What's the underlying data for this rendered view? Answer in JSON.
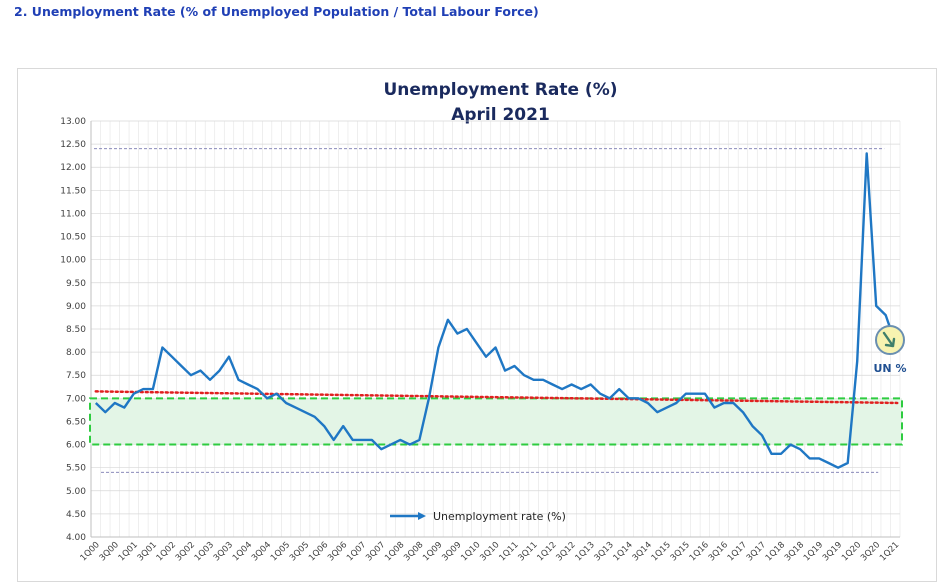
{
  "page": {
    "heading": "2. Unemployment Rate (% of Unemployed Population / Total Labour Force)"
  },
  "colors": {
    "line": "#1f77c4",
    "trend": "#e02020",
    "band": "#2ecc40",
    "band_fill": "#e3f5e6",
    "heading": "#1f3fb5",
    "badge_fill": "#f7f3b0",
    "badge_text": "#1f4f91"
  },
  "chart_data": {
    "type": "line",
    "title": "Unemployment Rate (%)",
    "subtitle": "April 2021",
    "ylim": [
      4.0,
      13.0
    ],
    "ytick_step": 0.5,
    "y_tick_labels": [
      "4.00",
      "4.50",
      "5.00",
      "5.50",
      "6.00",
      "6.50",
      "7.00",
      "7.50",
      "8.00",
      "8.50",
      "9.00",
      "9.50",
      "10.00",
      "10.50",
      "11.00",
      "11.50",
      "12.00",
      "12.50",
      "13.00"
    ],
    "x_tick_labels": [
      "1Q00",
      "3Q00",
      "1Q01",
      "3Q01",
      "1Q02",
      "3Q02",
      "1Q03",
      "3Q03",
      "1Q04",
      "3Q04",
      "1Q05",
      "3Q05",
      "1Q06",
      "3Q06",
      "1Q07",
      "3Q07",
      "1Q08",
      "3Q08",
      "1Q09",
      "3Q09",
      "1Q10",
      "3Q10",
      "1Q11",
      "3Q11",
      "1Q12",
      "3Q12",
      "1Q13",
      "3Q13",
      "1Q14",
      "3Q14",
      "1Q15",
      "3Q15",
      "1Q16",
      "3Q16",
      "1Q17",
      "3Q17",
      "1Q18",
      "3Q18",
      "1Q19",
      "3Q19",
      "1Q20",
      "3Q20",
      "1Q21"
    ],
    "grid": true,
    "legend": {
      "position": "bottom-center",
      "label": "Unemployment rate (%)"
    },
    "series": [
      {
        "name": "Unemployment rate (%)",
        "values": [
          6.9,
          6.7,
          6.9,
          6.8,
          7.1,
          7.2,
          7.2,
          8.1,
          7.9,
          7.7,
          7.5,
          7.6,
          7.4,
          7.6,
          7.9,
          7.4,
          7.3,
          7.2,
          7.0,
          7.1,
          6.9,
          6.8,
          6.7,
          6.6,
          6.4,
          6.1,
          6.4,
          6.1,
          6.1,
          6.1,
          5.9,
          6.0,
          6.1,
          6.0,
          6.1,
          7.0,
          8.1,
          8.7,
          8.4,
          8.5,
          8.2,
          7.9,
          8.1,
          7.6,
          7.7,
          7.5,
          7.4,
          7.4,
          7.3,
          7.2,
          7.3,
          7.2,
          7.3,
          7.1,
          7.0,
          7.2,
          7.0,
          7.0,
          6.9,
          6.7,
          6.8,
          6.9,
          7.1,
          7.1,
          7.1,
          6.8,
          6.9,
          6.9,
          6.7,
          6.4,
          6.2,
          5.8,
          5.8,
          6.0,
          5.9,
          5.7,
          5.7,
          5.6,
          5.5,
          5.6,
          7.8,
          12.3,
          9.0,
          8.8,
          8.2
        ]
      }
    ],
    "trend_line": {
      "start": 7.15,
      "end": 6.9
    },
    "reference_lines": {
      "upper": 12.4,
      "lower": 5.4
    },
    "band": {
      "low": 6.0,
      "high": 7.0
    },
    "annotation": {
      "label": "UN %",
      "icon": "down-arrow-circle-icon"
    }
  }
}
